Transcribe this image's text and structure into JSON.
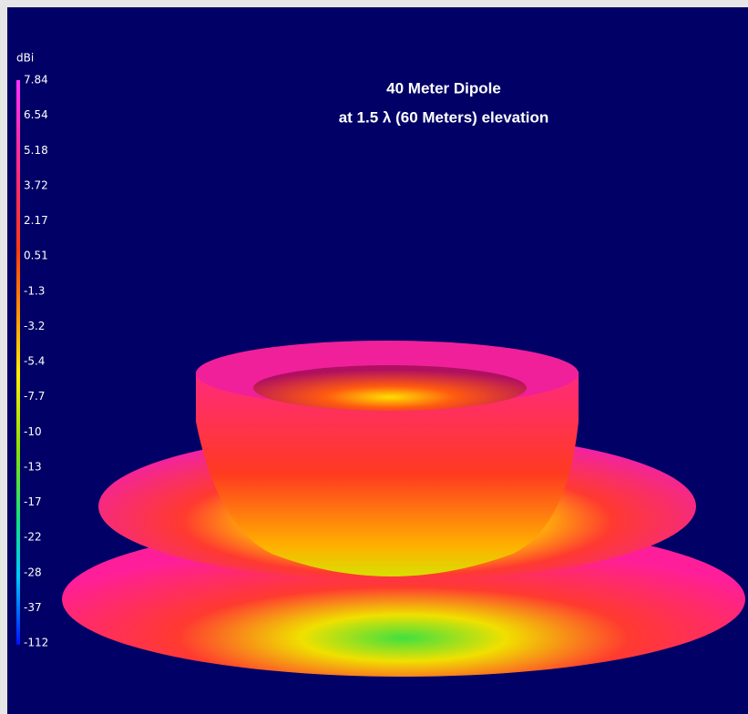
{
  "title": {
    "line1": "40 Meter Dipole",
    "line2": "at 1.5 λ (60 Meters) elevation"
  },
  "colorbar": {
    "unit": "dBi",
    "labels": [
      "7.84",
      "6.54",
      "5.18",
      "3.72",
      "2.17",
      "0.51",
      "-1.3",
      "-3.2",
      "-5.4",
      "-7.7",
      "-10",
      "-13",
      "-17",
      "-22",
      "-28",
      "-37",
      "-112"
    ]
  }
}
